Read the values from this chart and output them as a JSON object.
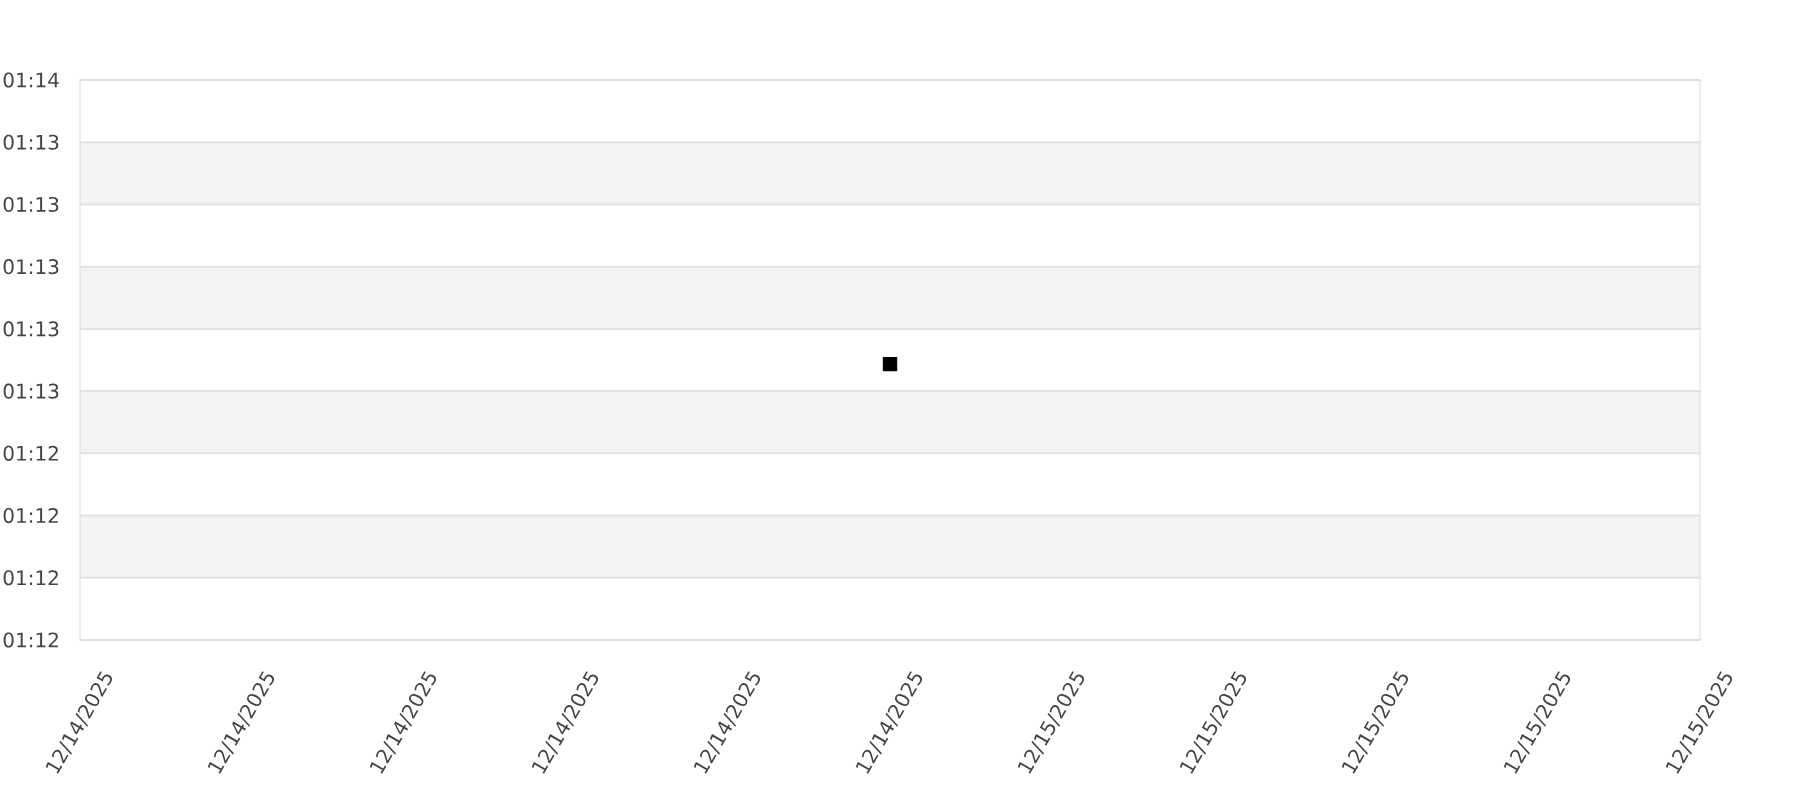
{
  "chart_data": {
    "type": "scatter",
    "x": [
      "2025-12-14T23:00"
    ],
    "values": [
      1.2123
    ],
    "color": "#000000",
    "marker": "square",
    "xlim": [
      "2025-12-14T18:00",
      "2025-12-15T04:00"
    ],
    "xticks": [
      {
        "value": "2025-12-14T18:00",
        "label": "12/14/2025"
      },
      {
        "value": "2025-12-14T19:00",
        "label": "12/14/2025"
      },
      {
        "value": "2025-12-14T20:00",
        "label": "12/14/2025"
      },
      {
        "value": "2025-12-14T21:00",
        "label": "12/14/2025"
      },
      {
        "value": "2025-12-14T22:00",
        "label": "12/14/2025"
      },
      {
        "value": "2025-12-14T23:00",
        "label": "12/14/2025"
      },
      {
        "value": "2025-12-15T00:00",
        "label": "12/15/2025"
      },
      {
        "value": "2025-12-15T01:00",
        "label": "12/15/2025"
      },
      {
        "value": "2025-12-15T02:00",
        "label": "12/15/2025"
      },
      {
        "value": "2025-12-15T03:00",
        "label": "12/15/2025"
      },
      {
        "value": "2025-12-15T04:00",
        "label": "12/15/2025"
      }
    ],
    "ylim": [
      1.199,
      1.226
    ],
    "yticks": [
      {
        "value": 1.199,
        "label": "01:12"
      },
      {
        "value": 1.202,
        "label": "01:12"
      },
      {
        "value": 1.205,
        "label": "01:12"
      },
      {
        "value": 1.208,
        "label": "01:12"
      },
      {
        "value": 1.211,
        "label": "01:13"
      },
      {
        "value": 1.214,
        "label": "01:13"
      },
      {
        "value": 1.217,
        "label": "01:13"
      },
      {
        "value": 1.22,
        "label": "01:13"
      },
      {
        "value": 1.223,
        "label": "01:13"
      },
      {
        "value": 1.226,
        "label": "01:14"
      }
    ],
    "bands": [
      {
        "axis": "y",
        "from": 1.202,
        "to": 1.205,
        "color": "#f3f3f3"
      },
      {
        "axis": "y",
        "from": 1.208,
        "to": 1.211,
        "color": "#f3f3f3"
      },
      {
        "axis": "y",
        "from": 1.214,
        "to": 1.217,
        "color": "#f3f3f3"
      },
      {
        "axis": "y",
        "from": 1.22,
        "to": 1.223,
        "color": "#f3f3f3"
      }
    ],
    "grid": "y"
  }
}
